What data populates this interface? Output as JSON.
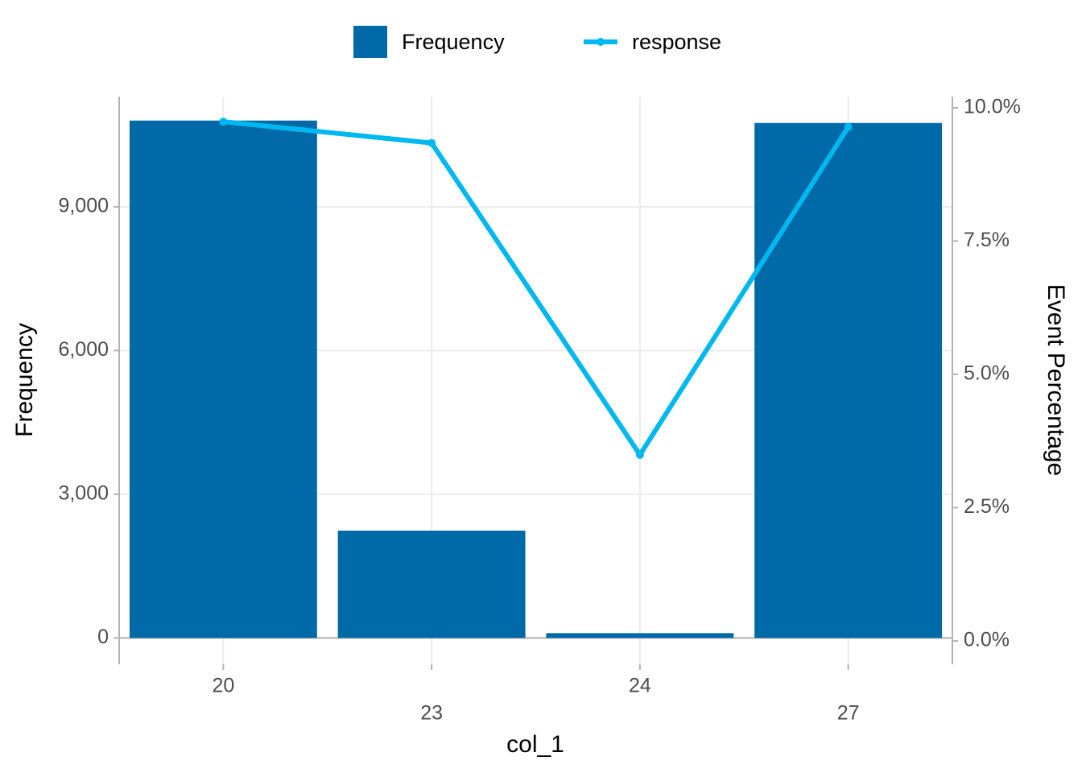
{
  "chart_data": {
    "type": "bar",
    "x_label": "col_1",
    "y_label": "Frequency",
    "y2_label": "Event Percentage",
    "categories": [
      "20",
      "23",
      "24",
      "27"
    ],
    "series": [
      {
        "name": "Frequency",
        "type": "bar",
        "color": "#0069a8",
        "values": [
          10800,
          2240,
          100,
          10750
        ]
      },
      {
        "name": "response",
        "type": "line",
        "axis": "y2",
        "color": "#00b8f0",
        "values": [
          9.74,
          9.34,
          3.49,
          9.64
        ]
      }
    ],
    "ylim": [
      -550,
      11300
    ],
    "yticks": [
      0,
      {
        "value": 3000,
        "label": "3,000"
      },
      {
        "value": 6000,
        "label": "6,000"
      },
      {
        "value": 9000,
        "label": "9,000"
      }
    ],
    "y2lim": [
      -0.44,
      10.21
    ],
    "y2ticks": [
      {
        "value": 0,
        "label": "0.0%"
      },
      {
        "value": 2.5,
        "label": "2.5%"
      },
      {
        "value": 5,
        "label": "5.0%"
      },
      {
        "value": 7.5,
        "label": "7.5%"
      },
      {
        "value": 10,
        "label": "10.0%"
      }
    ],
    "grid": true,
    "legend": "top"
  }
}
